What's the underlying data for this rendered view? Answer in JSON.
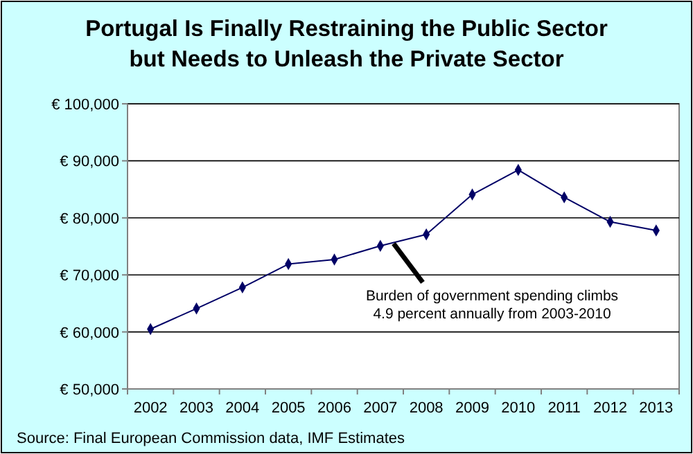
{
  "chart_data": {
    "type": "line",
    "title": "Portugal Is Finally Restraining the Public Sector\nbut Needs to Unleash the Private Sector",
    "categories": [
      "2002",
      "2003",
      "2004",
      "2005",
      "2006",
      "2007",
      "2008",
      "2009",
      "2010",
      "2011",
      "2012",
      "2013"
    ],
    "series": [
      {
        "color": "#000066",
        "values": [
          60500,
          64100,
          67800,
          71900,
          72700,
          75100,
          77100,
          84100,
          88400,
          83600,
          79300,
          77800
        ]
      }
    ],
    "ylim": [
      50000,
      100000
    ],
    "yticks": [
      {
        "value": 50000,
        "label": "€ 50,000"
      },
      {
        "value": 60000,
        "label": "€ 60,000"
      },
      {
        "value": 70000,
        "label": "€ 70,000"
      },
      {
        "value": 80000,
        "label": "€ 80,000"
      },
      {
        "value": 90000,
        "label": "€ 90,000"
      },
      {
        "value": 100000,
        "label": "€ 100,000"
      }
    ],
    "grid": "y",
    "marker": "diamond",
    "annotations": [
      "Burden of government spending climbs\n4.9 percent annually from 2003-2010",
      "Source: Final European Commission data, IMF Estimates"
    ]
  }
}
